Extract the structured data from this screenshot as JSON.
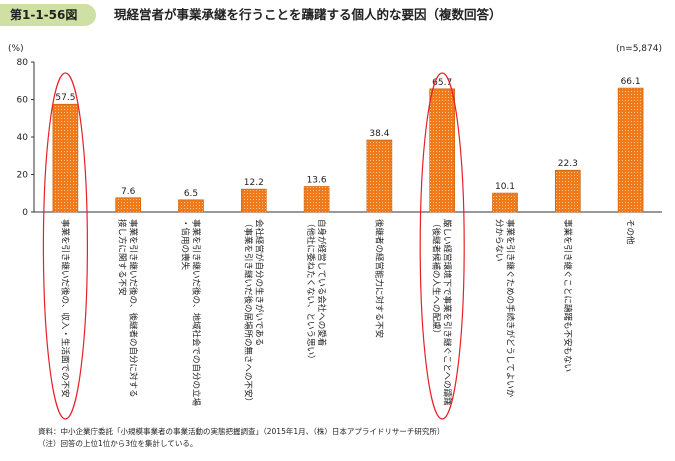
{
  "header": {
    "figure_number": "第1-1-56図",
    "title": "現経営者が事業承継を行うことを躊躇する個人的な要因（複数回答）"
  },
  "chart_data": {
    "type": "bar",
    "y_unit_label": "(%)",
    "sample_note": "(n=5,874)",
    "ylim": [
      0,
      80
    ],
    "yticks": [
      0,
      20,
      40,
      60,
      80
    ],
    "bar_color": "#f07a1a",
    "highlight_color": "#e8202a",
    "categories": [
      [
        "事業を引き継いだ後の、収入・生活面での不安"
      ],
      [
        "事業を引き継いだ後の、後継者の自分に対する",
        "接し方に関する不安"
      ],
      [
        "事業を引き継いだ後の、地域社会での自分の立場",
        "・信用の喪失"
      ],
      [
        "会社経営が自分の生きがいである",
        "（事業を引き継いだ後の居場所の無さへの不安）"
      ],
      [
        "自身が経営している会社への愛着",
        "（他社に委ねたくない、という思い）"
      ],
      [
        "後継者の経営能力に対する不安"
      ],
      [
        "厳しい経営環境下で事業を引き継ぐことへの躊躇",
        "（後継者候補の人生への配慮）"
      ],
      [
        "事業を引き継ぐための手続きがどうしてよいか",
        "分からない"
      ],
      [
        "事業を引き継ぐことに躊躇も不安もない"
      ],
      [
        "その他"
      ]
    ],
    "values": [
      57.5,
      7.6,
      6.5,
      12.2,
      13.6,
      38.4,
      65.7,
      10.1,
      22.3,
      66.1
    ],
    "value_labels": [
      "57.5",
      "7.6",
      "6.5",
      "12.2",
      "13.6",
      "38.4",
      "65.7",
      "10.1",
      "22.3",
      "66.1"
    ],
    "highlighted": [
      0,
      6
    ]
  },
  "footer": {
    "source": "資料：中小企業庁委託「小規模事業者の事業活動の実態把握調査」（2015年1月、（株）日本アプライドリサーチ研究所）",
    "note": "（注）回答の上位1位から3位を集計している。"
  }
}
